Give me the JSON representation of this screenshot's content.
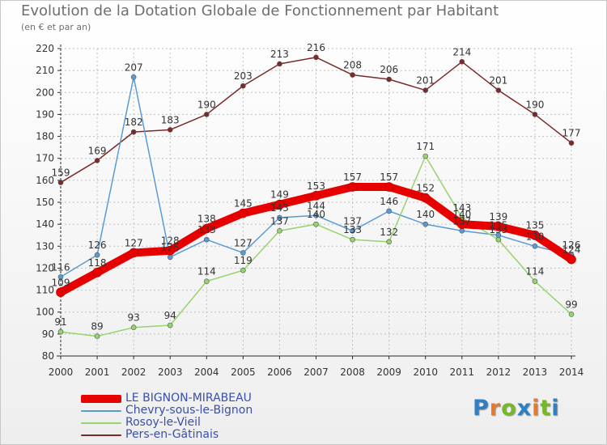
{
  "title": "Evolution de la Dotation Globale de Fonctionnement par Habitant",
  "subtitle": "(en € et par an)",
  "logo": "Proxiti",
  "colors": {
    "axis": "#2b2b2b",
    "grid": "#c0c0c0",
    "text": "#333333",
    "logo_letters": [
      "#2e7fc3",
      "#e8792a",
      "#77b82a",
      "#2e7fc3",
      "#e8792a",
      "#77b82a",
      "#2e7fc3"
    ]
  },
  "chart_data": {
    "type": "line",
    "x": [
      2000,
      2001,
      2002,
      2003,
      2004,
      2005,
      2006,
      2007,
      2008,
      2009,
      2010,
      2011,
      2012,
      2013,
      2014
    ],
    "ylim": [
      80,
      220
    ],
    "yticks": [
      80,
      90,
      100,
      110,
      120,
      130,
      140,
      150,
      160,
      170,
      180,
      190,
      200,
      210,
      220
    ],
    "grid": true,
    "legend_position": "bottom-left",
    "series": [
      {
        "name": "Pers-en-Gâtinais",
        "color": "#7a2a2a",
        "values": [
          159,
          169,
          182,
          183,
          190,
          203,
          213,
          216,
          208,
          206,
          201,
          214,
          201,
          190,
          177
        ],
        "labels": [
          "159",
          "169",
          "182",
          "183",
          "190",
          "203",
          "213",
          "216",
          "208",
          "206",
          "201",
          "214",
          "201",
          "190",
          "177"
        ],
        "label_pos": [
          "above",
          "above",
          "above",
          "above",
          "above",
          "above",
          "above",
          "above",
          "above",
          "above",
          "above",
          "above",
          "above",
          "above",
          "above"
        ],
        "emphasis": false
      },
      {
        "name": "Chevry-sous-le-Bignon",
        "color": "#5a9bd5",
        "values": [
          116,
          126,
          207,
          125,
          133,
          127,
          143,
          144,
          137,
          146,
          140,
          137,
          135,
          130,
          126
        ],
        "labels": [
          "116",
          "126",
          "207",
          "125",
          "133",
          "127",
          "143",
          "144",
          "137",
          "146",
          "140",
          "137",
          "135",
          "130",
          "126"
        ],
        "label_pos": [
          "above",
          "above",
          "above",
          "above",
          "above",
          "above",
          "above",
          "above",
          "above",
          "above",
          "above",
          "above",
          "above",
          "above",
          "above"
        ],
        "emphasis": false
      },
      {
        "name": "Rosoy-le-Vieil",
        "color": "#97d36e",
        "values": [
          91,
          89,
          93,
          94,
          114,
          119,
          137,
          140,
          133,
          132,
          171,
          143,
          133,
          114,
          99
        ],
        "labels": [
          "91",
          "89",
          "93",
          "94",
          "114",
          "119",
          "137",
          "140",
          "133",
          "132",
          "171",
          "143",
          "133",
          "114",
          "99"
        ],
        "label_pos": [
          "above",
          "above",
          "above",
          "above",
          "above",
          "above",
          "above",
          "above",
          "above",
          "above",
          "above",
          "above",
          "above",
          "above",
          "above"
        ],
        "emphasis": false
      },
      {
        "name": "LE BIGNON-MIRABEAU",
        "color": "#e60000",
        "values": [
          109,
          118,
          127,
          128,
          138,
          145,
          149,
          153,
          157,
          157,
          152,
          140,
          139,
          135,
          124
        ],
        "labels": [
          "109",
          "118",
          "127",
          "128",
          "138",
          "145",
          "149",
          "153",
          "157",
          "157",
          "152",
          "140",
          "139",
          "135",
          "124"
        ],
        "label_pos": [
          "above",
          "above",
          "above",
          "above",
          "above",
          "above",
          "above",
          "above",
          "above",
          "above",
          "above",
          "above",
          "above",
          "above",
          "above"
        ],
        "emphasis": true
      }
    ]
  },
  "legend": [
    {
      "name": "LE BIGNON-MIRABEAU",
      "color": "#e60000",
      "thickness": 10
    },
    {
      "name": "Chevry-sous-le-Bignon",
      "color": "#5a9bd5",
      "thickness": 2
    },
    {
      "name": "Rosoy-le-Vieil",
      "color": "#97d36e",
      "thickness": 2
    },
    {
      "name": "Pers-en-Gâtinais",
      "color": "#7a2a2a",
      "thickness": 2
    }
  ]
}
